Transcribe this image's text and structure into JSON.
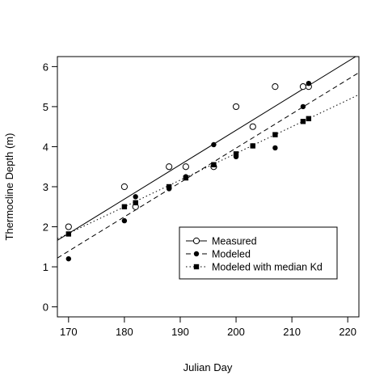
{
  "chart_data": {
    "type": "scatter",
    "title": "",
    "xlabel": "Julian Day",
    "ylabel": "Thermocline Depth (m)",
    "xlim": [
      168,
      222
    ],
    "ylim": [
      -0.25,
      6.25
    ],
    "xticks": [
      170,
      180,
      190,
      200,
      210,
      220
    ],
    "yticks": [
      0,
      1,
      2,
      3,
      4,
      5,
      6
    ],
    "grid": false,
    "legend_position": "bottom-right",
    "series": [
      {
        "name": "Measured",
        "marker": "open-circle",
        "line": "solid",
        "x": [
          170,
          180,
          182,
          188,
          191,
          196,
          200,
          203,
          207,
          212,
          213
        ],
        "y": [
          2.0,
          3.0,
          2.5,
          3.5,
          3.5,
          3.5,
          5.0,
          4.5,
          5.5,
          5.5,
          5.5
        ],
        "fit": {
          "x": [
            168,
            222
          ],
          "y": [
            1.66,
            6.3
          ]
        }
      },
      {
        "name": "Modeled",
        "marker": "filled-circle",
        "line": "dashed",
        "x": [
          170,
          180,
          182,
          182,
          188,
          191,
          196,
          200,
          203,
          207,
          212,
          213
        ],
        "y": [
          1.2,
          2.15,
          2.75,
          2.6,
          2.95,
          3.25,
          4.05,
          3.75,
          4.02,
          3.97,
          5.0,
          5.58
        ],
        "fit": {
          "x": [
            168,
            222
          ],
          "y": [
            1.22,
            5.85
          ]
        }
      },
      {
        "name": "Modeled with median Kd",
        "marker": "filled-square",
        "line": "dotted",
        "x": [
          170,
          180,
          182,
          188,
          191,
          196,
          200,
          203,
          207,
          212,
          213
        ],
        "y": [
          1.82,
          2.5,
          2.6,
          3.0,
          3.22,
          3.55,
          3.82,
          4.02,
          4.3,
          4.63,
          4.7
        ],
        "fit": {
          "x": [
            168,
            222
          ],
          "y": [
            1.7,
            5.3
          ]
        }
      }
    ]
  }
}
